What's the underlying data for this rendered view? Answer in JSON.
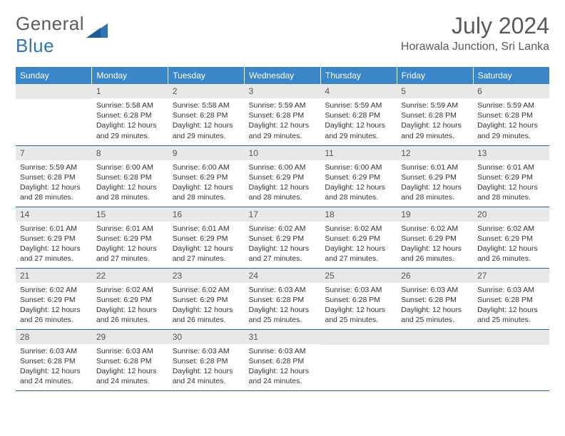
{
  "brand": {
    "part1": "General",
    "part2": "Blue"
  },
  "title": "July 2024",
  "location": "Horawala Junction, Sri Lanka",
  "colors": {
    "header_bg": "#3a86c8",
    "row_border": "#2e65a0",
    "daynum_bg": "#e8e8e8",
    "text_muted": "#595959",
    "logo_blue": "#2e75b6"
  },
  "weekdays": [
    "Sunday",
    "Monday",
    "Tuesday",
    "Wednesday",
    "Thursday",
    "Friday",
    "Saturday"
  ],
  "weeks": [
    [
      null,
      {
        "n": "1",
        "sr": "5:58 AM",
        "ss": "6:28 PM",
        "dh": "12",
        "dm": "29"
      },
      {
        "n": "2",
        "sr": "5:58 AM",
        "ss": "6:28 PM",
        "dh": "12",
        "dm": "29"
      },
      {
        "n": "3",
        "sr": "5:59 AM",
        "ss": "6:28 PM",
        "dh": "12",
        "dm": "29"
      },
      {
        "n": "4",
        "sr": "5:59 AM",
        "ss": "6:28 PM",
        "dh": "12",
        "dm": "29"
      },
      {
        "n": "5",
        "sr": "5:59 AM",
        "ss": "6:28 PM",
        "dh": "12",
        "dm": "29"
      },
      {
        "n": "6",
        "sr": "5:59 AM",
        "ss": "6:28 PM",
        "dh": "12",
        "dm": "29"
      }
    ],
    [
      {
        "n": "7",
        "sr": "5:59 AM",
        "ss": "6:28 PM",
        "dh": "12",
        "dm": "28"
      },
      {
        "n": "8",
        "sr": "6:00 AM",
        "ss": "6:28 PM",
        "dh": "12",
        "dm": "28"
      },
      {
        "n": "9",
        "sr": "6:00 AM",
        "ss": "6:29 PM",
        "dh": "12",
        "dm": "28"
      },
      {
        "n": "10",
        "sr": "6:00 AM",
        "ss": "6:29 PM",
        "dh": "12",
        "dm": "28"
      },
      {
        "n": "11",
        "sr": "6:00 AM",
        "ss": "6:29 PM",
        "dh": "12",
        "dm": "28"
      },
      {
        "n": "12",
        "sr": "6:01 AM",
        "ss": "6:29 PM",
        "dh": "12",
        "dm": "28"
      },
      {
        "n": "13",
        "sr": "6:01 AM",
        "ss": "6:29 PM",
        "dh": "12",
        "dm": "28"
      }
    ],
    [
      {
        "n": "14",
        "sr": "6:01 AM",
        "ss": "6:29 PM",
        "dh": "12",
        "dm": "27"
      },
      {
        "n": "15",
        "sr": "6:01 AM",
        "ss": "6:29 PM",
        "dh": "12",
        "dm": "27"
      },
      {
        "n": "16",
        "sr": "6:01 AM",
        "ss": "6:29 PM",
        "dh": "12",
        "dm": "27"
      },
      {
        "n": "17",
        "sr": "6:02 AM",
        "ss": "6:29 PM",
        "dh": "12",
        "dm": "27"
      },
      {
        "n": "18",
        "sr": "6:02 AM",
        "ss": "6:29 PM",
        "dh": "12",
        "dm": "27"
      },
      {
        "n": "19",
        "sr": "6:02 AM",
        "ss": "6:29 PM",
        "dh": "12",
        "dm": "26"
      },
      {
        "n": "20",
        "sr": "6:02 AM",
        "ss": "6:29 PM",
        "dh": "12",
        "dm": "26"
      }
    ],
    [
      {
        "n": "21",
        "sr": "6:02 AM",
        "ss": "6:29 PM",
        "dh": "12",
        "dm": "26"
      },
      {
        "n": "22",
        "sr": "6:02 AM",
        "ss": "6:29 PM",
        "dh": "12",
        "dm": "26"
      },
      {
        "n": "23",
        "sr": "6:02 AM",
        "ss": "6:29 PM",
        "dh": "12",
        "dm": "26"
      },
      {
        "n": "24",
        "sr": "6:03 AM",
        "ss": "6:28 PM",
        "dh": "12",
        "dm": "25"
      },
      {
        "n": "25",
        "sr": "6:03 AM",
        "ss": "6:28 PM",
        "dh": "12",
        "dm": "25"
      },
      {
        "n": "26",
        "sr": "6:03 AM",
        "ss": "6:28 PM",
        "dh": "12",
        "dm": "25"
      },
      {
        "n": "27",
        "sr": "6:03 AM",
        "ss": "6:28 PM",
        "dh": "12",
        "dm": "25"
      }
    ],
    [
      {
        "n": "28",
        "sr": "6:03 AM",
        "ss": "6:28 PM",
        "dh": "12",
        "dm": "24"
      },
      {
        "n": "29",
        "sr": "6:03 AM",
        "ss": "6:28 PM",
        "dh": "12",
        "dm": "24"
      },
      {
        "n": "30",
        "sr": "6:03 AM",
        "ss": "6:28 PM",
        "dh": "12",
        "dm": "24"
      },
      {
        "n": "31",
        "sr": "6:03 AM",
        "ss": "6:28 PM",
        "dh": "12",
        "dm": "24"
      },
      null,
      null,
      null
    ]
  ],
  "labels": {
    "sunrise": "Sunrise:",
    "sunset": "Sunset:",
    "daylight": "Daylight:",
    "hours": "hours",
    "and": "and",
    "minutes": "minutes."
  }
}
